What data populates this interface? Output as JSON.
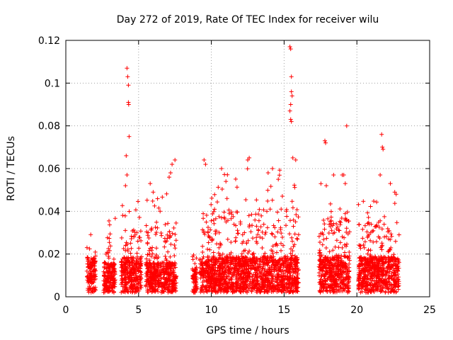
{
  "chart_data": {
    "type": "scatter",
    "title": "Day 272 of 2019, Rate Of TEC Index for receiver wilu",
    "xlabel": "GPS time / hours",
    "ylabel": "ROTI / TECUs",
    "xlim": [
      0,
      25
    ],
    "ylim": [
      0,
      0.12
    ],
    "x_ticks": [
      "0",
      "5",
      "10",
      "15",
      "20",
      "25"
    ],
    "y_ticks": [
      "0",
      "0.02",
      "0.04",
      "0.06",
      "0.08",
      "0.1",
      "0.12"
    ],
    "grid": true,
    "marker": "+",
    "color": "#ff0000",
    "clusters": [
      {
        "x_start": 1.45,
        "x_end": 2.05,
        "y_typ": 0.012,
        "y_max": 0.033
      },
      {
        "x_start": 2.6,
        "x_end": 3.4,
        "y_typ": 0.01,
        "y_max": 0.041
      },
      {
        "x_start": 3.8,
        "x_end": 5.2,
        "y_typ": 0.012,
        "y_max": 0.045
      },
      {
        "x_start": 5.5,
        "x_end": 7.6,
        "y_typ": 0.01,
        "y_max": 0.05
      },
      {
        "x_start": 8.7,
        "x_end": 9.0,
        "y_typ": 0.008,
        "y_max": 0.032
      },
      {
        "x_start": 9.2,
        "x_end": 16.0,
        "y_typ": 0.012,
        "y_max": 0.06
      },
      {
        "x_start": 17.4,
        "x_end": 19.5,
        "y_typ": 0.012,
        "y_max": 0.053
      },
      {
        "x_start": 20.1,
        "x_end": 22.9,
        "y_typ": 0.012,
        "y_max": 0.05
      }
    ],
    "spikes": [
      [
        4.2,
        0.107
      ],
      [
        4.25,
        0.103
      ],
      [
        4.3,
        0.099
      ],
      [
        4.3,
        0.091
      ],
      [
        4.32,
        0.09
      ],
      [
        4.35,
        0.075
      ],
      [
        4.15,
        0.066
      ],
      [
        4.2,
        0.057
      ],
      [
        4.1,
        0.052
      ],
      [
        5.8,
        0.053
      ],
      [
        6.0,
        0.049
      ],
      [
        7.1,
        0.056
      ],
      [
        7.2,
        0.058
      ],
      [
        7.3,
        0.062
      ],
      [
        7.5,
        0.064
      ],
      [
        9.5,
        0.064
      ],
      [
        9.6,
        0.062
      ],
      [
        10.7,
        0.06
      ],
      [
        11.0,
        0.054
      ],
      [
        12.5,
        0.064
      ],
      [
        12.6,
        0.065
      ],
      [
        13.9,
        0.058
      ],
      [
        14.2,
        0.06
      ],
      [
        14.6,
        0.055
      ],
      [
        15.4,
        0.117
      ],
      [
        15.45,
        0.116
      ],
      [
        15.5,
        0.103
      ],
      [
        15.5,
        0.096
      ],
      [
        15.55,
        0.094
      ],
      [
        15.45,
        0.09
      ],
      [
        15.4,
        0.087
      ],
      [
        15.45,
        0.083
      ],
      [
        15.5,
        0.082
      ],
      [
        15.6,
        0.065
      ],
      [
        15.8,
        0.064
      ],
      [
        17.8,
        0.073
      ],
      [
        17.85,
        0.072
      ],
      [
        17.9,
        0.052
      ],
      [
        18.4,
        0.057
      ],
      [
        19.0,
        0.057
      ],
      [
        19.1,
        0.057
      ],
      [
        19.3,
        0.08
      ],
      [
        19.2,
        0.053
      ],
      [
        21.7,
        0.076
      ],
      [
        21.75,
        0.07
      ],
      [
        21.8,
        0.069
      ],
      [
        21.6,
        0.057
      ],
      [
        22.3,
        0.053
      ],
      [
        22.6,
        0.049
      ],
      [
        22.7,
        0.048
      ]
    ]
  }
}
